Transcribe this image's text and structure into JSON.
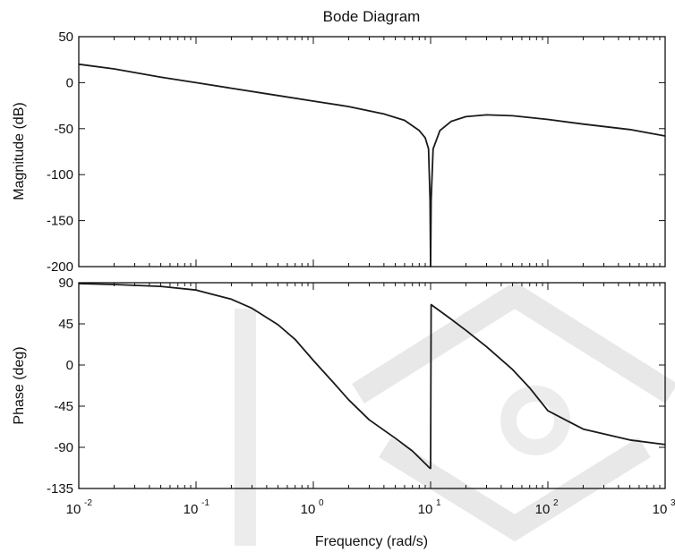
{
  "chart_data": {
    "type": "line",
    "title": "Bode Diagram",
    "xlabel": "Frequency  (rad/s)",
    "x_scale": "log",
    "xlim": [
      0.01,
      1000
    ],
    "x_ticks": [
      {
        "base": "10",
        "exp": "-2"
      },
      {
        "base": "10",
        "exp": "-1"
      },
      {
        "base": "10",
        "exp": "0"
      },
      {
        "base": "10",
        "exp": "1"
      },
      {
        "base": "10",
        "exp": "2"
      },
      {
        "base": "10",
        "exp": "3"
      }
    ],
    "panels": [
      {
        "name": "magnitude",
        "ylabel": "Magnitude (dB)",
        "ylim": [
          -200,
          50
        ],
        "yticks": [
          "50",
          "0",
          "-50",
          "-100",
          "-150",
          "-200"
        ],
        "x": [
          0.01,
          0.02,
          0.05,
          0.1,
          0.2,
          0.5,
          1,
          2,
          4,
          6,
          8,
          9,
          9.6,
          9.9,
          10,
          10.1,
          10.5,
          12,
          15,
          20,
          30,
          50,
          100,
          200,
          500,
          1000
        ],
        "y": [
          20,
          15,
          6,
          0,
          -6,
          -14,
          -20,
          -26,
          -34,
          -41,
          -52,
          -60,
          -72,
          -128,
          -200,
          -128,
          -72,
          -52,
          -42,
          -37,
          -35,
          -36,
          -40,
          -45,
          -51,
          -58
        ]
      },
      {
        "name": "phase",
        "ylabel": "Phase (deg)",
        "ylim": [
          -135,
          90
        ],
        "yticks": [
          "90",
          "45",
          "0",
          "-45",
          "-90",
          "-135"
        ],
        "x": [
          0.01,
          0.02,
          0.05,
          0.1,
          0.2,
          0.3,
          0.5,
          0.7,
          1,
          1.5,
          2,
          3,
          5,
          7,
          9.9,
          10,
          10.1,
          15,
          20,
          30,
          50,
          70,
          100,
          200,
          500,
          1000
        ],
        "y": [
          89,
          88,
          86,
          82,
          72,
          62,
          44,
          28,
          5,
          -20,
          -38,
          -60,
          -80,
          -94,
          -113,
          -113,
          66,
          50,
          38,
          20,
          -5,
          -25,
          -50,
          -70,
          -82,
          -87
        ]
      }
    ]
  }
}
